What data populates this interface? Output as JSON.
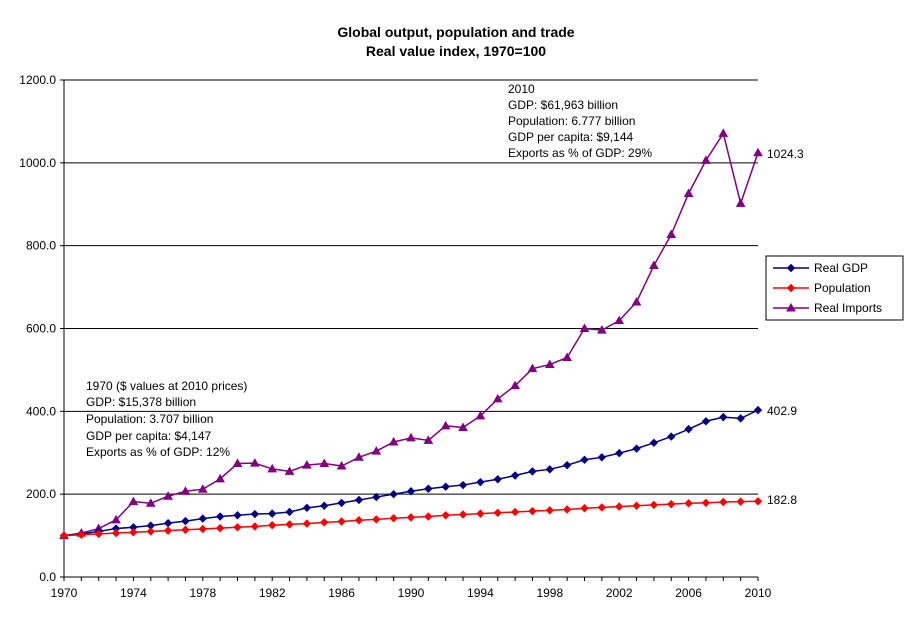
{
  "chart_data": {
    "type": "line",
    "title_lines": [
      "Global output, population and trade",
      "Real value index, 1970=100"
    ],
    "xlabel": "",
    "ylabel": "",
    "x": [
      1970,
      1971,
      1972,
      1973,
      1974,
      1975,
      1976,
      1977,
      1978,
      1979,
      1980,
      1981,
      1982,
      1983,
      1984,
      1985,
      1986,
      1987,
      1988,
      1989,
      1990,
      1991,
      1992,
      1993,
      1994,
      1995,
      1996,
      1997,
      1998,
      1999,
      2000,
      2001,
      2002,
      2003,
      2004,
      2005,
      2006,
      2007,
      2008,
      2009,
      2010
    ],
    "xlim": [
      1970,
      2010
    ],
    "x_ticks": [
      1970,
      1974,
      1978,
      1982,
      1986,
      1990,
      1994,
      1998,
      2002,
      2006,
      2010
    ],
    "x_tick_labels": [
      "1970",
      "1974",
      "1978",
      "1982",
      "1986",
      "1990",
      "1994",
      "1998",
      "2002",
      "2006",
      "2010"
    ],
    "ylim": [
      0,
      1200
    ],
    "y_ticks": [
      0,
      200,
      400,
      600,
      800,
      1000,
      1200
    ],
    "y_tick_labels": [
      "0.0",
      "200.0",
      "400.0",
      "600.0",
      "800.0",
      "1000.0",
      "1200.0"
    ],
    "grid": "horizontal",
    "legend_position": "right",
    "series": [
      {
        "name": "Real GDP",
        "color": "#000080",
        "marker": "diamond",
        "values": [
          100,
          104,
          110,
          117,
          120,
          124,
          130,
          135,
          141,
          146,
          149,
          152,
          153,
          157,
          167,
          172,
          179,
          186,
          193,
          200,
          207,
          213,
          218,
          222,
          229,
          236,
          245,
          255,
          260,
          270,
          283,
          289,
          299,
          310,
          324,
          339,
          357,
          376,
          386,
          383,
          402.9
        ]
      },
      {
        "name": "Population",
        "color": "#ff0000",
        "marker": "diamond",
        "values": [
          100,
          102,
          104,
          106,
          108,
          110,
          112,
          114,
          116,
          118,
          120,
          122,
          125,
          127,
          129,
          132,
          134,
          137,
          139,
          142,
          144,
          146,
          149,
          151,
          153,
          155,
          157,
          159,
          161,
          163,
          166,
          168,
          170,
          172,
          174,
          176,
          178,
          179,
          181,
          182,
          182.8
        ]
      },
      {
        "name": "Real Imports",
        "color": "#800080",
        "marker": "triangle",
        "values": [
          100,
          106,
          117,
          138,
          182,
          178,
          195,
          207,
          212,
          237,
          274,
          275,
          261,
          255,
          270,
          274,
          268,
          289,
          304,
          326,
          336,
          330,
          365,
          361,
          389,
          430,
          462,
          503,
          513,
          530,
          600,
          596,
          619,
          664,
          752,
          827,
          926,
          1006,
          1071,
          902,
          1024.3
        ]
      }
    ],
    "end_labels": [
      "402.9",
      "182.8",
      "1024.3"
    ],
    "annotations": [
      {
        "id": "anno-1970",
        "lines": [
          "1970 ($ values at 2010 prices)",
          "GDP: $15,378 billion",
          "Population: 3.707 billion",
          "GDP per capita: $4,147",
          "Exports as % of GDP: 12%"
        ]
      },
      {
        "id": "anno-2010",
        "lines": [
          "2010",
          "GDP: $61,963 billion",
          "Population: 6.777 billion",
          "GDP per capita: $9,144",
          "Exports as % of GDP: 29%"
        ]
      }
    ]
  }
}
